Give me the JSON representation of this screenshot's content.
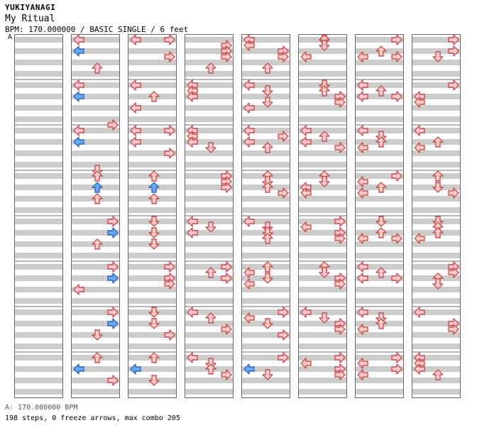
{
  "header": {
    "artist": "YUKIYANAGI",
    "title": "My Ritual",
    "info": "BPM: 170.000000 / BASIC SINGLE / 6 feet",
    "marker": "A"
  },
  "footer": {
    "bpm": "A: 170.000000 BPM",
    "stats": "198 steps, 0 freeze arrows, max combo 205"
  },
  "colors": {
    "stripe": "#cccccc",
    "border": "#666666",
    "note_fill": "#ffcccc",
    "note_stroke": "#cc3333",
    "eighth_fill": "#66aaff",
    "eighth_stroke": "#2255aa"
  },
  "chart": {
    "measures_per_column": 8,
    "rows_per_measure": 8,
    "columns": [
      {
        "notes": []
      },
      {
        "notes": [
          [
            0,
            0,
            "L"
          ],
          [
            0,
            2,
            "L",
            "b"
          ],
          [
            0,
            5,
            "U"
          ],
          [
            1,
            0,
            "L"
          ],
          [
            1,
            2,
            "L",
            "b"
          ],
          [
            1,
            7,
            "R"
          ],
          [
            2,
            0,
            "L"
          ],
          [
            2,
            2,
            "L",
            "b"
          ],
          [
            2,
            7,
            "D"
          ],
          [
            3,
            0,
            "U"
          ],
          [
            3,
            2,
            "U",
            "b"
          ],
          [
            3,
            4,
            "U"
          ],
          [
            4,
            0,
            "R"
          ],
          [
            4,
            2,
            "R",
            "b"
          ],
          [
            4,
            4,
            "U"
          ],
          [
            5,
            0,
            "R"
          ],
          [
            5,
            2,
            "R",
            "b"
          ],
          [
            5,
            4,
            "L"
          ],
          [
            6,
            0,
            "R"
          ],
          [
            6,
            2,
            "R",
            "b"
          ],
          [
            6,
            4,
            "D"
          ],
          [
            7,
            0,
            "U"
          ],
          [
            7,
            2,
            "L",
            "b"
          ],
          [
            7,
            4,
            "R"
          ]
        ]
      },
      {
        "notes": [
          [
            0,
            0,
            "L"
          ],
          [
            0,
            0,
            "R"
          ],
          [
            0,
            3,
            "R"
          ],
          [
            1,
            0,
            "L"
          ],
          [
            1,
            2,
            "U"
          ],
          [
            1,
            4,
            "L"
          ],
          [
            2,
            0,
            "L"
          ],
          [
            2,
            0,
            "R"
          ],
          [
            2,
            2,
            "L"
          ],
          [
            2,
            4,
            "R"
          ],
          [
            3,
            0,
            "U"
          ],
          [
            3,
            2,
            "U",
            "b"
          ],
          [
            3,
            4,
            "U"
          ],
          [
            4,
            0,
            "D"
          ],
          [
            4,
            2,
            "D"
          ],
          [
            4,
            4,
            "D"
          ],
          [
            5,
            0,
            "R"
          ],
          [
            5,
            2,
            "R"
          ],
          [
            5,
            3,
            "R"
          ],
          [
            6,
            0,
            "D"
          ],
          [
            6,
            2,
            "D"
          ],
          [
            6,
            4,
            "R"
          ],
          [
            7,
            0,
            "U"
          ],
          [
            7,
            2,
            "L",
            "b"
          ],
          [
            7,
            4,
            "D"
          ]
        ]
      },
      {
        "notes": [
          [
            0,
            1,
            "R"
          ],
          [
            0,
            2,
            "R"
          ],
          [
            0,
            3,
            "R"
          ],
          [
            0,
            5,
            "U"
          ],
          [
            1,
            0,
            "L"
          ],
          [
            1,
            1,
            "L"
          ],
          [
            1,
            2,
            "L"
          ],
          [
            2,
            0,
            "L"
          ],
          [
            2,
            1,
            "L"
          ],
          [
            2,
            2,
            "L"
          ],
          [
            2,
            3,
            "D"
          ],
          [
            3,
            0,
            "R"
          ],
          [
            3,
            1,
            "R"
          ],
          [
            3,
            2,
            "R"
          ],
          [
            4,
            0,
            "L"
          ],
          [
            4,
            1,
            "D"
          ],
          [
            4,
            2,
            "L"
          ],
          [
            5,
            0,
            "R"
          ],
          [
            5,
            1,
            "U"
          ],
          [
            5,
            2,
            "R"
          ],
          [
            6,
            0,
            "L"
          ],
          [
            6,
            1,
            "U"
          ],
          [
            6,
            3,
            "R"
          ],
          [
            7,
            0,
            "L"
          ],
          [
            7,
            1,
            "D"
          ],
          [
            7,
            2,
            "U"
          ],
          [
            7,
            3,
            "R"
          ]
        ]
      },
      {
        "notes": [
          [
            0,
            0,
            "L"
          ],
          [
            0,
            1,
            "L"
          ],
          [
            0,
            2,
            "R"
          ],
          [
            0,
            3,
            "R"
          ],
          [
            0,
            5,
            "U"
          ],
          [
            1,
            0,
            "L"
          ],
          [
            1,
            1,
            "D"
          ],
          [
            1,
            3,
            "D"
          ],
          [
            1,
            4,
            "L"
          ],
          [
            2,
            0,
            "L"
          ],
          [
            2,
            1,
            "R"
          ],
          [
            2,
            2,
            "L"
          ],
          [
            2,
            3,
            "U"
          ],
          [
            3,
            0,
            "U"
          ],
          [
            3,
            1,
            "D"
          ],
          [
            3,
            2,
            "U"
          ],
          [
            3,
            3,
            "R"
          ],
          [
            4,
            0,
            "L"
          ],
          [
            4,
            1,
            "D"
          ],
          [
            4,
            2,
            "D"
          ],
          [
            4,
            3,
            "U"
          ],
          [
            5,
            0,
            "U"
          ],
          [
            5,
            1,
            "L"
          ],
          [
            5,
            2,
            "D"
          ],
          [
            5,
            3,
            "L"
          ],
          [
            6,
            0,
            "R"
          ],
          [
            6,
            1,
            "L"
          ],
          [
            6,
            2,
            "D"
          ],
          [
            6,
            4,
            "R"
          ],
          [
            7,
            0,
            "R"
          ],
          [
            7,
            2,
            "L",
            "b"
          ],
          [
            7,
            3,
            "D"
          ]
        ]
      },
      {
        "notes": [
          [
            0,
            0,
            "D"
          ],
          [
            0,
            0,
            "U"
          ],
          [
            0,
            1,
            "D"
          ],
          [
            0,
            3,
            "L"
          ],
          [
            1,
            0,
            "D"
          ],
          [
            1,
            1,
            "U"
          ],
          [
            1,
            2,
            "R"
          ],
          [
            1,
            3,
            "R"
          ],
          [
            2,
            0,
            "L"
          ],
          [
            2,
            1,
            "U"
          ],
          [
            2,
            2,
            "L"
          ],
          [
            2,
            3,
            "R"
          ],
          [
            3,
            0,
            "U"
          ],
          [
            3,
            1,
            "D"
          ],
          [
            3,
            2,
            "L"
          ],
          [
            3,
            3,
            "L"
          ],
          [
            4,
            0,
            "R"
          ],
          [
            4,
            1,
            "L"
          ],
          [
            4,
            2,
            "R"
          ],
          [
            4,
            3,
            "R"
          ],
          [
            5,
            0,
            "U"
          ],
          [
            5,
            1,
            "D"
          ],
          [
            5,
            2,
            "R"
          ],
          [
            5,
            3,
            "R"
          ],
          [
            6,
            0,
            "L"
          ],
          [
            6,
            1,
            "D"
          ],
          [
            6,
            2,
            "R"
          ],
          [
            6,
            3,
            "R"
          ],
          [
            7,
            0,
            "R"
          ],
          [
            7,
            1,
            "L"
          ],
          [
            7,
            2,
            "R"
          ],
          [
            7,
            3,
            "R"
          ]
        ]
      },
      {
        "notes": [
          [
            0,
            0,
            "R"
          ],
          [
            0,
            2,
            "U"
          ],
          [
            0,
            3,
            "L"
          ],
          [
            0,
            3,
            "R"
          ],
          [
            1,
            0,
            "L"
          ],
          [
            1,
            1,
            "U"
          ],
          [
            1,
            2,
            "R"
          ],
          [
            1,
            2,
            "L"
          ],
          [
            2,
            0,
            "L"
          ],
          [
            2,
            1,
            "D"
          ],
          [
            2,
            2,
            "U"
          ],
          [
            2,
            3,
            "L"
          ],
          [
            3,
            0,
            "R"
          ],
          [
            3,
            1,
            "L"
          ],
          [
            3,
            2,
            "U"
          ],
          [
            3,
            3,
            "L"
          ],
          [
            4,
            0,
            "D"
          ],
          [
            4,
            2,
            "U"
          ],
          [
            4,
            3,
            "L"
          ],
          [
            4,
            3,
            "R"
          ],
          [
            5,
            0,
            "L"
          ],
          [
            5,
            1,
            "U"
          ],
          [
            5,
            2,
            "R"
          ],
          [
            5,
            2,
            "L"
          ],
          [
            6,
            0,
            "L"
          ],
          [
            6,
            1,
            "D"
          ],
          [
            6,
            2,
            "U"
          ],
          [
            6,
            3,
            "L"
          ],
          [
            7,
            0,
            "R"
          ],
          [
            7,
            1,
            "L"
          ],
          [
            7,
            2,
            "R"
          ],
          [
            7,
            3,
            "L"
          ]
        ]
      },
      {
        "notes": [
          [
            0,
            0,
            "R"
          ],
          [
            0,
            2,
            "R"
          ],
          [
            0,
            3,
            "D"
          ],
          [
            1,
            0,
            "R"
          ],
          [
            1,
            2,
            "L"
          ],
          [
            1,
            3,
            "L"
          ],
          [
            2,
            0,
            "L"
          ],
          [
            2,
            2,
            "U"
          ],
          [
            2,
            3,
            "L"
          ],
          [
            3,
            0,
            "U"
          ],
          [
            3,
            2,
            "D"
          ],
          [
            3,
            3,
            "R"
          ],
          [
            4,
            0,
            "D"
          ],
          [
            4,
            1,
            "U"
          ],
          [
            4,
            2,
            "U"
          ],
          [
            4,
            3,
            "L"
          ],
          [
            5,
            0,
            "R"
          ],
          [
            5,
            1,
            "R"
          ],
          [
            5,
            2,
            "U"
          ],
          [
            5,
            3,
            "D"
          ],
          [
            6,
            0,
            "L"
          ],
          [
            6,
            2,
            "R"
          ],
          [
            6,
            3,
            "R"
          ],
          [
            7,
            0,
            "L"
          ],
          [
            7,
            1,
            "L"
          ],
          [
            7,
            2,
            "L"
          ],
          [
            7,
            3,
            "U"
          ]
        ]
      }
    ]
  }
}
